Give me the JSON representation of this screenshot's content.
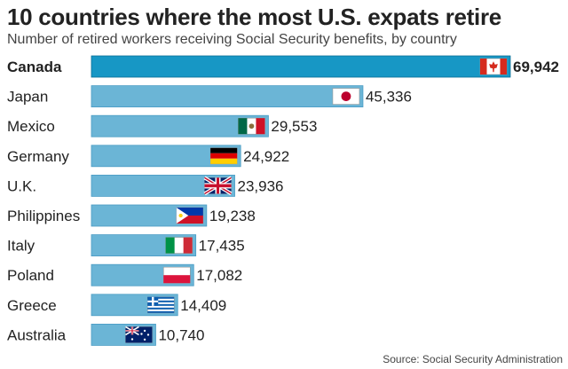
{
  "chart_data": {
    "type": "bar",
    "orientation": "horizontal",
    "title": "10 countries where the most U.S. expats retire",
    "subtitle": "Number of retired workers receiving Social Security benefits, by country",
    "source": "Source: Social Security Administration",
    "categories": [
      "Canada",
      "Japan",
      "Mexico",
      "Germany",
      "U.K.",
      "Philippines",
      "Italy",
      "Poland",
      "Greece",
      "Australia"
    ],
    "values": [
      69942,
      45336,
      29553,
      24922,
      23936,
      19238,
      17435,
      17082,
      14409,
      10740
    ],
    "value_labels": [
      "69,942",
      "45,336",
      "29,553",
      "24,922",
      "23,936",
      "19,238",
      "17,435",
      "17,082",
      "14,409",
      "10,740"
    ],
    "flags": [
      "canada-flag",
      "japan-flag",
      "mexico-flag",
      "germany-flag",
      "uk-flag",
      "philippines-flag",
      "italy-flag",
      "poland-flag",
      "greece-flag",
      "australia-flag"
    ],
    "highlight_index": 0,
    "xlim": [
      0,
      69942
    ],
    "colors": {
      "bar": "#6bb5d6",
      "highlight": "#1797c5",
      "border": "#4a9cc4",
      "text": "#222222"
    }
  }
}
